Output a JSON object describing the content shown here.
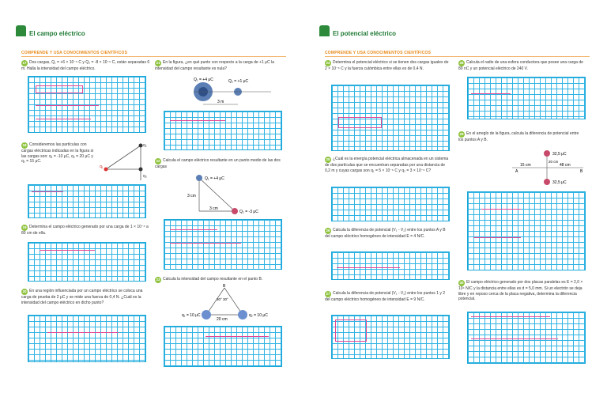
{
  "left": {
    "title": "El campo eléctrico",
    "section": "COMPRENDE Y USA CONOCIMIENTOS CIENTÍFICOS",
    "questions": [
      {
        "n": "17",
        "text": "Dos cargas, Q₁ = +6 × 10⁻⁶ C y Q₂ = -8 × 10⁻⁶ C, están separadas 6 m. Halla la intensidad del campo eléctrico."
      },
      {
        "n": "18",
        "text": "Consideremos las partículas con cargas eléctricas indicadas en la figura si las cargas son: q₁ = -10 μC, q₂ = 20 μC y q₃ = 15 μC."
      },
      {
        "n": "19",
        "text": "Determina el campo eléctrico generado por una carga de 1 × 10⁻⁶ a 80 cm de ella."
      },
      {
        "n": "20",
        "text": "En una región influenciada por un campo eléctrico se coloca una carga de prueba de 2 μC y se mide una fuerza de 0,4 N. ¿Cuál es la intensidad del campo eléctrico en dicho punto?"
      },
      {
        "n": "21",
        "text": "En la figura, ¿en qué punto con respecto a la carga de +1 μC la intensidad del campo resultante es nula?"
      },
      {
        "n": "22",
        "text": "Calcula el campo eléctrico resultante en un punto medio de las dos cargas"
      },
      {
        "n": "23",
        "text": "Calcula la intensidad del campo resultante en el punto B."
      }
    ],
    "fig21": {
      "q1": "Q₁ = +4 μC",
      "q2": "Q₂ = +1 μC",
      "dist": "3 m"
    },
    "fig22": {
      "q1": "Q₁ = +4 μC",
      "q2": "Q₂ = -3 μC",
      "d1": "3 cm",
      "d2": "3 cm"
    },
    "fig23": {
      "q1": "q₁ = 10 μC",
      "q2": "q₂ = 10 μC",
      "b": "B",
      "ang": "30° 30°",
      "d": "20 cm"
    },
    "fig18": {
      "q1": "q₁",
      "q2": "q₂",
      "q3": "q₃"
    }
  },
  "right": {
    "title": "El potencial eléctrico",
    "section": "COMPRENDE Y USA CONOCIMIENTOS CIENTÍFICOS",
    "questions": [
      {
        "n": "24",
        "text": "Determina el potencial eléctrico si se tienen dos cargas iguales de 2 × 10⁻⁶ C y la fuerza culómbica entre ellas es de 0,4 N."
      },
      {
        "n": "25",
        "text": "¿Cuál es la energía potencial eléctrica almacenada en un sistema de dos partículas que se encuentran separadas por una distancia de 0,2 m y cuyas cargas son q₁ = 5 × 10⁻⁶ C y q₂ = 3 × 10⁻⁶ C?"
      },
      {
        "n": "26",
        "text": "Calcula la diferencia de potencial (V₁ - V₂) entre los puntos A y B del campo eléctrico homogéneo de intensidad E = 4 N/C."
      },
      {
        "n": "27",
        "text": "Calcula la diferencia de potencial (V₁ - V₂) entre los puntos 1 y 2 del campo eléctrico homogéneo de intensidad E = 9 N/C."
      },
      {
        "n": "28",
        "text": "Calcula el radio de una esfera conductora que posee una carga de 80 nC y un potencial eléctrico de 240 V."
      },
      {
        "n": "29",
        "text": "En el arreglo de la figura, calcula la diferencia de potencial entre los puntos A y B."
      },
      {
        "n": "30",
        "text": "El campo eléctrico generado por dos placas paralelas es E = 2,0 × 10⁴ N/C y la distancia entre ellas es d = 5,0 mm. Si un electrón se deja libre y en reposo cerca de la placa negativa, determina la diferencia potencial."
      }
    ],
    "fig29": {
      "q1": "32,5 μC",
      "q2": "32,5 μC",
      "d1": "15 cm",
      "d2": "48 cm",
      "d3": "20 cm",
      "a": "A",
      "b": "B"
    }
  }
}
